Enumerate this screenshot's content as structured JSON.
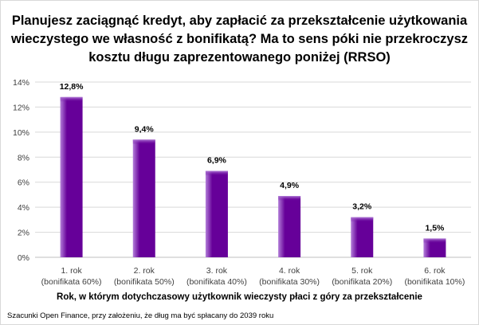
{
  "chart_data": {
    "type": "bar",
    "title": "Planujesz zaciągnąć kredyt, aby zapłacić za przekształcenie użytkowania wieczystego we własność z bonifikatą? Ma to sens póki nie przekroczysz kosztu długu zaprezentowanego poniżej (RRSO)",
    "title_lines": [
      "Planujesz zaciągnąć kredyt, aby zapłacić za przekształcenie użytkowania",
      "wieczystego we własność z bonifikatą? Ma to sens póki nie przekroczysz",
      "kosztu długu zaprezentowanego poniżej (RRSO)"
    ],
    "categories": [
      [
        "1. rok",
        "(bonifikata 60%)"
      ],
      [
        "2. rok",
        "(bonifikata 50%)"
      ],
      [
        "3. rok",
        "(bonifikata 40%)"
      ],
      [
        "4. rok",
        "(bonifikata 30%)"
      ],
      [
        "5. rok",
        "(bonifikata 20%)"
      ],
      [
        "6. rok",
        "(bonifikata 10%)"
      ]
    ],
    "values": [
      12.8,
      9.4,
      6.9,
      4.9,
      3.2,
      1.5
    ],
    "data_labels": [
      "12,8%",
      "9,4%",
      "6,9%",
      "4,9%",
      "3,2%",
      "1,5%"
    ],
    "xlabel": "Rok, w którym dotychczasowy użytkownik wieczysty płaci z góry za przekształcenie",
    "ylabel": "",
    "ylim": [
      0,
      14
    ],
    "yticks": [
      0,
      2,
      4,
      6,
      8,
      10,
      12,
      14
    ],
    "ytick_labels": [
      "0%",
      "2%",
      "4%",
      "6%",
      "8%",
      "10%",
      "12%",
      "14%"
    ],
    "grid": true,
    "legend": "none",
    "colors": {
      "bar": "#660099",
      "bar_highlight": "#a96fd1",
      "grid": "#d9d9d9"
    }
  },
  "footer": {
    "source": "Szacunki Open Finance, przy założeniu, że dług ma być spłacany do 2039 roku"
  }
}
